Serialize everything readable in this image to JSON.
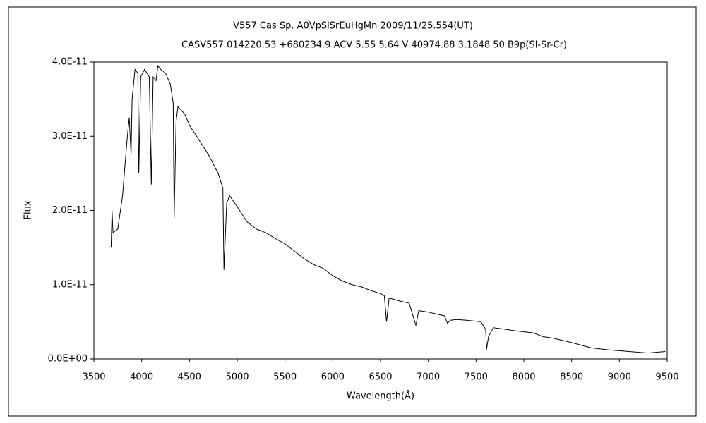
{
  "chart_data": {
    "type": "line",
    "title": "V557 Cas     Sp. A0VpSiSrEuHgMn     2009/11/25.554(UT)",
    "subtitle": "CASV557 014220.53 +680234.9 ACV 5.55 5.64 V 40974.88 3.1848 50 B9p(Si-Sr-Cr)",
    "xlabel": "Wavelength(Å)",
    "ylabel": "Flux",
    "xlim": [
      3500,
      9500
    ],
    "xticks": [
      3500,
      4000,
      4500,
      5000,
      5500,
      6000,
      6500,
      7000,
      7500,
      8000,
      8500,
      9000,
      9500
    ],
    "ylim": [
      0,
      4e-11
    ],
    "yticks": [
      {
        "value": 0,
        "label": "0.0E+00"
      },
      {
        "value": 1e-11,
        "label": "1.0E-11"
      },
      {
        "value": 2e-11,
        "label": "2.0E-11"
      },
      {
        "value": 3e-11,
        "label": "3.0E-11"
      },
      {
        "value": 4e-11,
        "label": "4.0E-11"
      }
    ],
    "grid": false,
    "series": [
      {
        "color": "#000000",
        "x": [
          3680,
          3690,
          3700,
          3750,
          3800,
          3850,
          3870,
          3889,
          3900,
          3930,
          3960,
          3970,
          3990,
          4030,
          4080,
          4101,
          4120,
          4150,
          4170,
          4200,
          4250,
          4300,
          4330,
          4340,
          4360,
          4380,
          4450,
          4500,
          4600,
          4700,
          4800,
          4850,
          4861,
          4890,
          4920,
          5000,
          5100,
          5200,
          5300,
          5400,
          5500,
          5600,
          5700,
          5800,
          5900,
          6000,
          6100,
          6200,
          6300,
          6400,
          6500,
          6540,
          6563,
          6590,
          6700,
          6800,
          6870,
          6900,
          7000,
          7100,
          7170,
          7200,
          7230,
          7300,
          7400,
          7550,
          7600,
          7610,
          7630,
          7680,
          7800,
          7900,
          8100,
          8200,
          8300,
          8500,
          8700,
          8900,
          9100,
          9300,
          9480
        ],
        "values": [
          1.5e-11,
          2e-11,
          1.7e-11,
          1.75e-11,
          2.2e-11,
          3e-11,
          3.25e-11,
          2.75e-11,
          3.5e-11,
          3.9e-11,
          3.85e-11,
          2.5e-11,
          3.8e-11,
          3.9e-11,
          3.8e-11,
          2.35e-11,
          3.8e-11,
          3.75e-11,
          3.95e-11,
          3.9e-11,
          3.85e-11,
          3.7e-11,
          3.45e-11,
          1.9e-11,
          3.2e-11,
          3.4e-11,
          3.3e-11,
          3.15e-11,
          2.95e-11,
          2.75e-11,
          2.5e-11,
          2.3e-11,
          1.2e-11,
          2.1e-11,
          2.2e-11,
          2.05e-11,
          1.85e-11,
          1.75e-11,
          1.7e-11,
          1.62e-11,
          1.55e-11,
          1.45e-11,
          1.35e-11,
          1.27e-11,
          1.22e-11,
          1.12e-11,
          1.05e-11,
          1e-11,
          9.7e-12,
          9.2e-12,
          8.8e-12,
          8.5e-12,
          5e-12,
          8.2e-12,
          7.8e-12,
          7.5e-12,
          4.5e-12,
          6.5e-12,
          6.3e-12,
          6e-12,
          5.8e-12,
          4.8e-12,
          5.2e-12,
          5.3e-12,
          5.2e-12,
          5e-12,
          4e-12,
          1.3e-12,
          3e-12,
          4.2e-12,
          4e-12,
          3.8e-12,
          3.5e-12,
          3e-12,
          2.8e-12,
          2.2e-12,
          1.5e-12,
          1.2e-12,
          1e-12,
          8e-13,
          1e-12
        ]
      }
    ]
  }
}
